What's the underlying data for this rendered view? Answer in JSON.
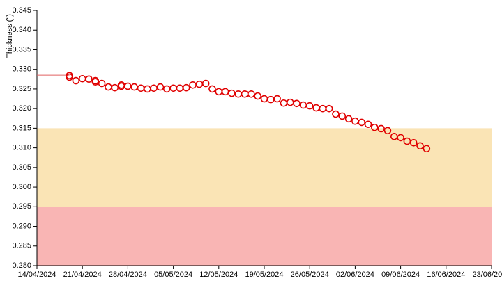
{
  "chart_data": {
    "type": "scatter",
    "y_label": "Thickness (\")",
    "color": "#e00000",
    "reference_value": 0.3285,
    "reference_color": "#e06060",
    "bands": [
      {
        "from": 0.295,
        "to": 0.315,
        "color": "#fae4b5"
      },
      {
        "from": 0.28,
        "to": 0.295,
        "color": "#f9b5b4"
      }
    ],
    "xlim": [
      "14/04/2024",
      "23/06/2024"
    ],
    "xticks": [
      "14/04/2024",
      "21/04/2024",
      "28/04/2024",
      "05/05/2024",
      "12/05/2024",
      "19/05/2024",
      "26/05/2024",
      "02/06/2024",
      "09/06/2024",
      "16/06/2024",
      "23/06/2024"
    ],
    "ylim": [
      0.28,
      0.345
    ],
    "yticks": [
      {
        "value": 0.28,
        "label": "0.280"
      },
      0.285,
      {
        "value": 0.29,
        "label": "0.290"
      },
      0.295,
      {
        "value": 0.3,
        "label": "0.300"
      },
      0.305,
      {
        "value": 0.31,
        "label": "0.310"
      },
      0.315,
      {
        "value": 0.32,
        "label": "0.320"
      },
      0.325,
      {
        "value": 0.33,
        "label": "0.330"
      },
      0.335,
      {
        "value": 0.34,
        "label": "0.340"
      },
      0.345
    ],
    "x": [
      "19/04/2024",
      "19/04/2024",
      "20/04/2024",
      "21/04/2024",
      "22/04/2024",
      "23/04/2024",
      "23/04/2024",
      "24/04/2024",
      "25/04/2024",
      "26/04/2024",
      "27/04/2024",
      "27/04/2024",
      "28/04/2024",
      "29/04/2024",
      "30/04/2024",
      "01/05/2024",
      "02/05/2024",
      "03/05/2024",
      "04/05/2024",
      "05/05/2024",
      "06/05/2024",
      "07/05/2024",
      "08/05/2024",
      "09/05/2024",
      "10/05/2024",
      "11/05/2024",
      "12/05/2024",
      "13/05/2024",
      "14/05/2024",
      "15/05/2024",
      "16/05/2024",
      "17/05/2024",
      "18/05/2024",
      "19/05/2024",
      "20/05/2024",
      "21/05/2024",
      "22/05/2024",
      "23/05/2024",
      "24/05/2024",
      "25/05/2024",
      "26/05/2024",
      "27/05/2024",
      "28/05/2024",
      "29/05/2024",
      "30/05/2024",
      "31/05/2024",
      "01/06/2024",
      "02/06/2024",
      "03/06/2024",
      "04/06/2024",
      "05/06/2024",
      "06/06/2024",
      "07/06/2024",
      "08/06/2024",
      "09/06/2024",
      "10/06/2024",
      "11/06/2024",
      "12/06/2024",
      "13/06/2024"
    ],
    "values": [
      0.3284,
      0.328,
      0.3271,
      0.3276,
      0.3275,
      0.3271,
      0.3268,
      0.3264,
      0.3255,
      0.3253,
      0.326,
      0.3257,
      0.3257,
      0.3255,
      0.3252,
      0.325,
      0.3252,
      0.3255,
      0.325,
      0.3252,
      0.3252,
      0.3253,
      0.326,
      0.3262,
      0.3264,
      0.325,
      0.3243,
      0.3243,
      0.3239,
      0.3237,
      0.3237,
      0.3237,
      0.3232,
      0.3225,
      0.3223,
      0.3225,
      0.3214,
      0.3216,
      0.3213,
      0.3209,
      0.3207,
      0.3202,
      0.32,
      0.32,
      0.3186,
      0.3181,
      0.3174,
      0.3168,
      0.3165,
      0.316,
      0.3152,
      0.3149,
      0.3144,
      0.3129,
      0.3126,
      0.3117,
      0.3113,
      0.3105,
      0.3098
    ]
  }
}
